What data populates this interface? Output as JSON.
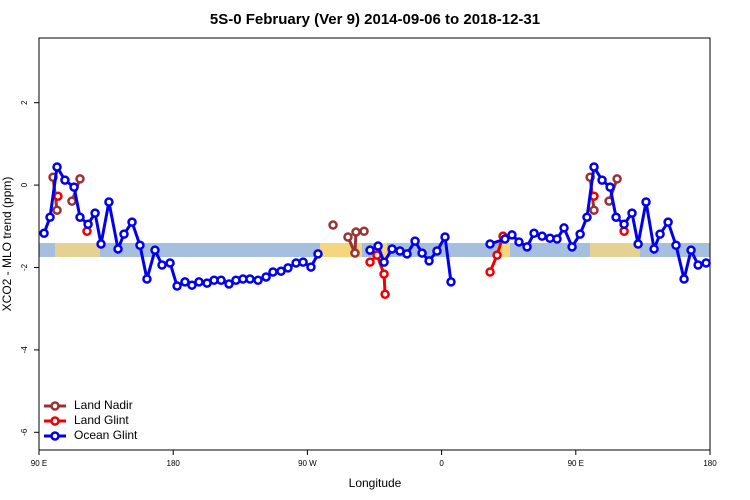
{
  "chart_data": {
    "type": "line",
    "title": "5S-0 February (Ver 9)   2014-09-06 to 2018-12-31",
    "x_label": "Longitude",
    "y_label": "XCO2 - MLO trend (ppm)",
    "xlim": [
      90,
      540
    ],
    "ylim": [
      -6.43,
      3.57
    ],
    "xticks": [
      {
        "value": 90,
        "label": "90 E"
      },
      180,
      {
        "value": 270,
        "label": "90 W"
      },
      {
        "value": 360,
        "label": "0"
      },
      {
        "value": 450,
        "label": "90 E"
      },
      {
        "value": 540,
        "label": "180"
      }
    ],
    "yticks": [
      -6,
      -4,
      -2,
      0,
      2
    ],
    "legend": "bottom-left",
    "series": [
      {
        "name": "Land Nadir",
        "color": "#993333",
        "x": [
          99.4,
          102.1,
          107,
          112.1,
          117.5,
          200,
          287.2,
          292,
          297.2,
          301.9,
          302.6,
          308.0,
          400,
          459.6,
          462.2,
          467,
          472.3,
          477.7
        ],
        "values": [
          0.19,
          -0.61,
          null,
          -0.39,
          0.15,
          null,
          -0.97,
          null,
          -1.26,
          -1.65,
          -1.14,
          -1.12,
          null,
          0.19,
          -0.61,
          null,
          -0.39,
          0.15
        ]
      },
      {
        "name": "Land Glint",
        "color": "#ee0000",
        "x": [
          102.7,
          110,
          122.2,
          200,
          312.0,
          316.7,
          321.4,
          322.1,
          360,
          392.5,
          397.2,
          401.2,
          430,
          462.2,
          470,
          482.4
        ],
        "values": [
          -0.27,
          null,
          -1.12,
          null,
          -1.87,
          -1.7,
          -2.16,
          -2.65,
          null,
          -2.11,
          -1.7,
          -1.24,
          null,
          -0.27,
          null,
          -1.12
        ]
      },
      {
        "name": "Ocean Glint",
        "color": "#0000ee",
        "x": [
          93.4,
          97.4,
          102.1,
          107.4,
          113.5,
          117.5,
          122.9,
          127.6,
          131.6,
          136.9,
          143.0,
          147.0,
          152.4,
          157.7,
          162.4,
          167.8,
          172.5,
          177.9,
          182.6,
          187.9,
          192.6,
          197.3,
          202.7,
          207.4,
          212.1,
          217.4,
          222.1,
          226.8,
          231.5,
          236.9,
          242.3,
          246.9,
          252.3,
          257.0,
          262.4,
          267.1,
          272.4,
          277.1,
          300,
          312.0,
          317.4,
          321.4,
          326.8,
          332.1,
          336.8,
          342.2,
          346.9,
          351.6,
          356.9,
          362.3,
          366.3,
          380,
          392.5,
          402.5,
          407.2,
          411.9,
          417.3,
          422.0,
          427.4,
          432.7,
          437.4,
          442.1,
          447.5,
          452.9,
          457.5,
          462.2,
          467.6,
          473.0,
          477.0,
          482.4,
          487.7,
          491.8,
          497.1,
          502.5,
          506.5,
          511.9,
          517.2,
          522.6,
          527.3,
          532.0,
          537.4
        ],
        "values": [
          -1.17,
          -0.78,
          0.44,
          0.12,
          -0.05,
          -0.78,
          -0.95,
          -0.68,
          -1.43,
          -0.41,
          -1.55,
          -1.19,
          -0.9,
          -1.46,
          -2.28,
          -1.58,
          -1.94,
          -1.89,
          -2.45,
          -2.35,
          -2.43,
          -2.35,
          -2.38,
          -2.31,
          -2.31,
          -2.4,
          -2.31,
          -2.28,
          -2.28,
          -2.31,
          -2.23,
          -2.11,
          -2.09,
          -2.01,
          -1.89,
          -1.87,
          -1.99,
          -1.67,
          null,
          -1.58,
          -1.48,
          -1.87,
          -1.55,
          -1.6,
          -1.67,
          -1.36,
          -1.65,
          -1.84,
          -1.6,
          -1.26,
          -2.35,
          null,
          -1.43,
          -1.31,
          -1.21,
          -1.38,
          -1.5,
          -1.17,
          -1.24,
          -1.29,
          -1.31,
          -1.04,
          -1.5,
          -1.19,
          -0.78,
          0.44,
          0.12,
          -0.05,
          -0.78,
          -0.95,
          -0.68,
          -1.43,
          -0.41,
          -1.55,
          -1.19,
          -0.9,
          -1.46,
          -2.28,
          -1.58,
          -1.94,
          -1.89
        ]
      }
    ]
  }
}
